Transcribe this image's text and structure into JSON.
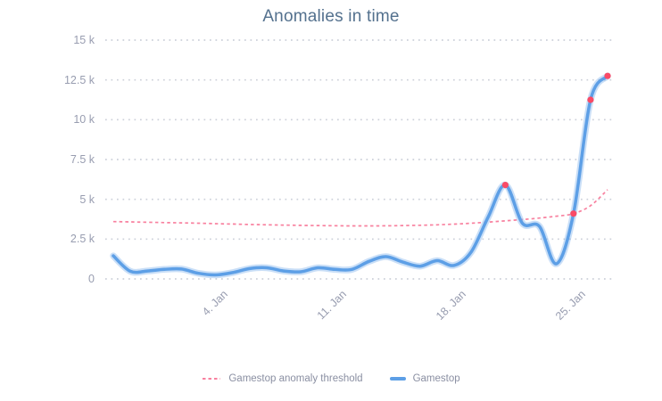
{
  "title": "Anomalies in time",
  "legend": {
    "items": [
      {
        "label": "Gamestop anomaly threshold",
        "sample": "dashed",
        "color": "#f8819f"
      },
      {
        "label": "Gamestop",
        "sample": "solid",
        "color": "#5d9fe6"
      }
    ]
  },
  "chart_data": {
    "type": "line",
    "title": "Anomalies in time",
    "xlabel": "",
    "ylabel": "",
    "ylim": [
      0,
      15000
    ],
    "grid": "dotted horizontal gridlines",
    "legend_position": "bottom center",
    "x": [
      "29. Dec",
      "30. Dec",
      "31. Dec",
      "1. Jan",
      "2. Jan",
      "3. Jan",
      "4. Jan",
      "5. Jan",
      "6. Jan",
      "7. Jan",
      "8. Jan",
      "9. Jan",
      "10. Jan",
      "11. Jan",
      "12. Jan",
      "13. Jan",
      "14. Jan",
      "15. Jan",
      "16. Jan",
      "17. Jan",
      "18. Jan",
      "19. Jan",
      "20. Jan",
      "21. Jan",
      "22. Jan",
      "23. Jan",
      "24. Jan",
      "25. Jan",
      "26. Jan",
      "27. Jan"
    ],
    "xticks": [
      "4. Jan",
      "11. Jan",
      "18. Jan",
      "25. Jan"
    ],
    "yticks": [
      {
        "label": "0",
        "value": 0
      },
      {
        "label": "2.5 k",
        "value": 2500
      },
      {
        "label": "5 k",
        "value": 5000
      },
      {
        "label": "7.5 k",
        "value": 7500
      },
      {
        "label": "10 k",
        "value": 10000
      },
      {
        "label": "12.5 k",
        "value": 12500
      },
      {
        "label": "15 k",
        "value": 15000
      }
    ],
    "series": [
      {
        "name": "Gamestop anomaly threshold",
        "style": "dashed",
        "color": "#f8819f",
        "values": [
          3600,
          3580,
          3560,
          3540,
          3520,
          3500,
          3470,
          3445,
          3420,
          3400,
          3380,
          3365,
          3350,
          3340,
          3330,
          3330,
          3335,
          3350,
          3370,
          3400,
          3440,
          3500,
          3570,
          3650,
          3730,
          3820,
          3940,
          4100,
          4600,
          5600
        ]
      },
      {
        "name": "Gamestop",
        "style": "solid",
        "color": "#5d9fe6",
        "values": [
          1450,
          480,
          500,
          600,
          620,
          350,
          250,
          400,
          650,
          700,
          500,
          450,
          700,
          600,
          600,
          1100,
          1400,
          1050,
          800,
          1150,
          850,
          1700,
          3900,
          5900,
          3500,
          3300,
          950,
          4100,
          11250,
          12750
        ]
      }
    ],
    "anomalies": {
      "marker_color": "#fa4a66",
      "points": [
        {
          "x": "21. Jan",
          "value": 5900
        },
        {
          "x": "25. Jan",
          "value": 4100
        },
        {
          "x": "26. Jan",
          "value": 11250
        },
        {
          "x": "27. Jan",
          "value": 12750
        }
      ]
    }
  }
}
